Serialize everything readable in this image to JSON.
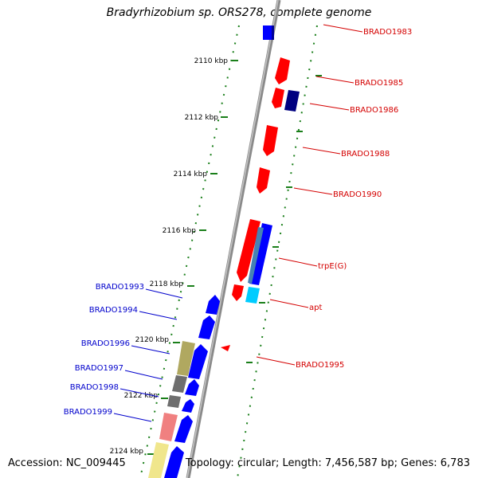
{
  "header": {
    "title": "Bradyrhizobium sp. ORS278, complete genome"
  },
  "footer": {
    "accession": "Accession: NC_009445",
    "summary": "Topology: circular; Length: 7,456,587 bp; Genes: 6,783"
  },
  "colors": {
    "backbone": "#8a8a8a",
    "tick": "#1a7f1a",
    "label_right": "#d40000",
    "label_left": "#0000cc",
    "gene_red": "#ff0000",
    "gene_blue": "#0000ff",
    "gene_navy": "#000080",
    "gene_steel": "#4682b4",
    "gene_cyan": "#00ccff",
    "gene_olive": "#b0a860",
    "gene_gray": "#6e6e6e",
    "gene_pink": "#f08080",
    "gene_yellow": "#f0e68c"
  },
  "scale_labels": [
    "2110 kbp",
    "2112 kbp",
    "2114 kbp",
    "2116 kbp",
    "2118 kbp",
    "2120 kbp",
    "2122 kbp",
    "2124 kbp"
  ],
  "right_labels": [
    "BRADO1983",
    "BRADO1985",
    "BRADO1986",
    "BRADO1988",
    "BRADO1990",
    "trpE(G)",
    "apt",
    "BRADO1995"
  ],
  "left_labels": [
    "BRADO1993",
    "BRADO1994",
    "BRADO1996",
    "BRADO1997",
    "BRADO1998",
    "BRADO1999"
  ]
}
